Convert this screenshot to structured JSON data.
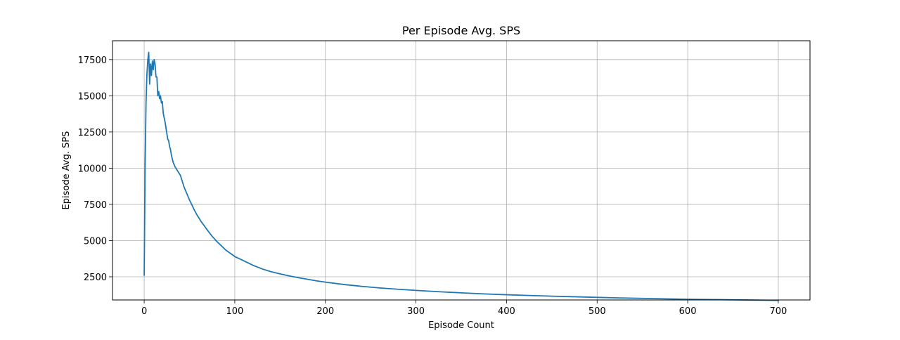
{
  "chart_data": {
    "type": "line",
    "title": "Per Episode Avg. SPS",
    "xlabel": "Episode Count",
    "ylabel": "Episode Avg. SPS",
    "xlim": [
      -35,
      735
    ],
    "ylim": [
      900,
      18800
    ],
    "xticks": [
      0,
      100,
      200,
      300,
      400,
      500,
      600,
      700
    ],
    "yticks": [
      2500,
      5000,
      7500,
      10000,
      12500,
      15000,
      17500
    ],
    "xtick_labels": [
      "0",
      "100",
      "200",
      "300",
      "400",
      "500",
      "600",
      "700"
    ],
    "ytick_labels": [
      "2500",
      "5000",
      "7500",
      "10000",
      "12500",
      "15000",
      "17500"
    ],
    "grid": true,
    "line_color": "#1f77b4",
    "series": [
      {
        "x": [
          0,
          1,
          2,
          3,
          4,
          5,
          6,
          7,
          8,
          9,
          10,
          11,
          12,
          13,
          14,
          15,
          16,
          17,
          18,
          19,
          20,
          21,
          22,
          23,
          24,
          25,
          26,
          27,
          28,
          29,
          30,
          32,
          34,
          36,
          38,
          40,
          42,
          44,
          46,
          48,
          50,
          52,
          55,
          58,
          60,
          63,
          66,
          70,
          75,
          80,
          85,
          90,
          100,
          110,
          120,
          130,
          140,
          150,
          160,
          170,
          180,
          190,
          200,
          220,
          240,
          260,
          280,
          300,
          325,
          350,
          375,
          400,
          425,
          450,
          475,
          500,
          525,
          550,
          575,
          600,
          625,
          650,
          675,
          700
        ],
        "y": [
          2600,
          10200,
          14500,
          16500,
          17500,
          18000,
          15800,
          17200,
          16400,
          17400,
          16800,
          17500,
          17200,
          16300,
          16300,
          15000,
          15300,
          14800,
          15000,
          14500,
          14600,
          13800,
          13500,
          13200,
          12800,
          12400,
          12000,
          11900,
          11500,
          11300,
          10900,
          10400,
          10100,
          9900,
          9700,
          9500,
          9100,
          8700,
          8400,
          8100,
          7800,
          7550,
          7150,
          6800,
          6600,
          6300,
          6050,
          5700,
          5300,
          4950,
          4650,
          4350,
          3900,
          3600,
          3300,
          3050,
          2850,
          2700,
          2560,
          2440,
          2330,
          2220,
          2130,
          1970,
          1840,
          1730,
          1640,
          1560,
          1470,
          1390,
          1320,
          1260,
          1210,
          1160,
          1120,
          1080,
          1040,
          1010,
          980,
          950,
          930,
          910,
          890,
          870
        ]
      }
    ]
  }
}
